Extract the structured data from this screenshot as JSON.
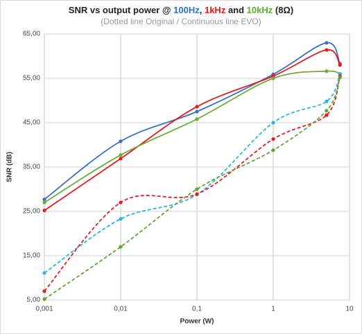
{
  "chart_data": {
    "type": "line",
    "title": [
      {
        "text": "SNR vs output power @ ",
        "color": "#222222"
      },
      {
        "text": "100Hz",
        "color": "#2f6fc6"
      },
      {
        "text": ", ",
        "color": "#222222"
      },
      {
        "text": "1kHz",
        "color": "#e8191b"
      },
      {
        "text": " and ",
        "color": "#222222"
      },
      {
        "text": "10kHz",
        "color": "#5fa83a"
      },
      {
        "text": " (8Ω)",
        "color": "#222222"
      }
    ],
    "subtitle": "(Dotted line Original / Continuous line EVO)",
    "x_label": "Power (W)",
    "y_label": "SNR (dB)",
    "x": [
      0.001,
      0.01,
      0.1,
      1,
      5,
      7.5
    ],
    "xlog": true,
    "xlim": [
      0.001,
      10
    ],
    "xticks": [
      {
        "value": 0.001,
        "label": "0,001"
      },
      {
        "value": 0.01,
        "label": "0,01"
      },
      {
        "value": 0.1,
        "label": "0,1"
      },
      1,
      10
    ],
    "ylim": [
      5,
      65
    ],
    "yticks": [
      {
        "value": 5,
        "label": "5,00"
      },
      {
        "value": 15,
        "label": "15,00"
      },
      {
        "value": 25,
        "label": "25,00"
      },
      {
        "value": 35,
        "label": "35,00"
      },
      {
        "value": 45,
        "label": "45,00"
      },
      {
        "value": 55,
        "label": "55,00"
      },
      {
        "value": 65,
        "label": "65,00"
      }
    ],
    "grid": true,
    "series": [
      {
        "name": "100Hz EVO",
        "color": "#3a6fc4",
        "dashed": false,
        "values": [
          27.7,
          40.8,
          47.5,
          55.9,
          63.0,
          58.3
        ]
      },
      {
        "name": "1kHz EVO",
        "color": "#e8191b",
        "dashed": false,
        "values": [
          25.2,
          36.9,
          48.6,
          55.5,
          61.4,
          58.0
        ]
      },
      {
        "name": "10kHz EVO",
        "color": "#6aab3a",
        "dashed": false,
        "values": [
          27.0,
          37.7,
          45.8,
          55.0,
          56.6,
          56.0
        ]
      },
      {
        "name": "100Hz Original",
        "color": "#27b5e6",
        "dashed": true,
        "values": [
          11.1,
          23.3,
          28.8,
          45.0,
          49.8,
          56.0
        ]
      },
      {
        "name": "1kHz Original",
        "color": "#e0201d",
        "dashed": true,
        "values": [
          7.0,
          27.0,
          28.9,
          41.3,
          46.7,
          55.5
        ]
      },
      {
        "name": "10kHz Original",
        "color": "#5fa33a",
        "dashed": true,
        "values": [
          5.2,
          17.0,
          30.0,
          38.8,
          47.7,
          55.2
        ]
      }
    ]
  }
}
